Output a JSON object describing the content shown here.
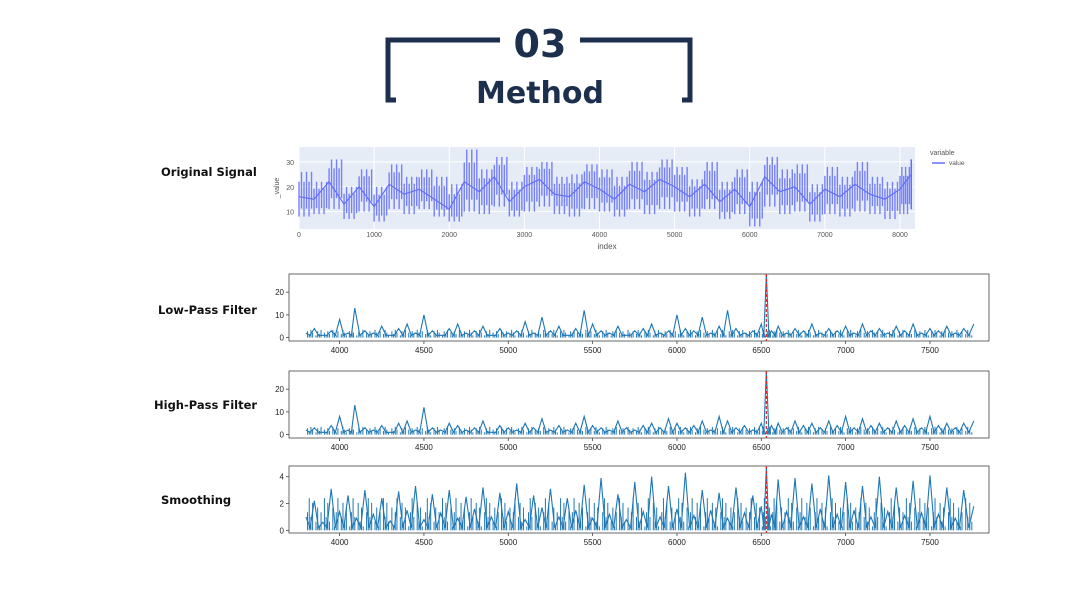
{
  "header": {
    "number": "03",
    "title": "Method"
  },
  "labels": {
    "original": "Original Signal",
    "lowpass": "Low-Pass Filter",
    "highpass": "High-Pass Filter",
    "smoothing": "Smoothing"
  },
  "colors": {
    "navy": "#1c2f4d",
    "plotly_bg": "#e5ecf6",
    "plotly_line": "#636efa",
    "mpl_line": "#1f77b4",
    "marker_red": "#d62728"
  },
  "chart_data": [
    {
      "type": "line",
      "title": "",
      "xlabel": "index",
      "ylabel": "_value",
      "xlim": [
        0,
        8200
      ],
      "ylim": [
        3,
        36
      ],
      "x_ticks": [
        0,
        1000,
        2000,
        3000,
        4000,
        5000,
        6000,
        7000,
        8000
      ],
      "y_ticks": [
        10,
        20,
        30
      ],
      "legend": {
        "title": "variable",
        "position": "top-right",
        "entries": [
          "value"
        ]
      },
      "series": [
        {
          "name": "value",
          "x": [
            0,
            200,
            400,
            600,
            800,
            1000,
            1200,
            1400,
            1600,
            1800,
            2000,
            2200,
            2400,
            2600,
            2800,
            3000,
            3200,
            3400,
            3600,
            3800,
            4000,
            4200,
            4400,
            4600,
            4800,
            5000,
            5200,
            5400,
            5600,
            5800,
            6000,
            6200,
            6400,
            6600,
            6800,
            7000,
            7200,
            7400,
            7600,
            7800,
            8000,
            8150
          ],
          "y": [
            16,
            15,
            22,
            13,
            20,
            12,
            21,
            17,
            19,
            15,
            11,
            22,
            18,
            24,
            14,
            20,
            23,
            17,
            16,
            22,
            19,
            15,
            21,
            18,
            23,
            20,
            16,
            21,
            14,
            19,
            12,
            24,
            18,
            20,
            13,
            19,
            16,
            21,
            17,
            15,
            19,
            25
          ],
          "min": [
            8,
            9,
            11,
            7,
            10,
            6,
            11,
            9,
            11,
            8,
            6,
            10,
            9,
            12,
            8,
            10,
            12,
            9,
            8,
            11,
            10,
            8,
            11,
            9,
            11,
            10,
            8,
            11,
            7,
            9,
            4,
            12,
            9,
            10,
            6,
            9,
            8,
            10,
            9,
            7,
            9,
            11
          ],
          "max": [
            26,
            22,
            31,
            20,
            27,
            20,
            29,
            24,
            27,
            24,
            21,
            35,
            27,
            32,
            22,
            28,
            30,
            24,
            25,
            29,
            27,
            24,
            30,
            26,
            31,
            28,
            23,
            30,
            22,
            27,
            22,
            32,
            27,
            29,
            21,
            28,
            24,
            30,
            24,
            22,
            28,
            31
          ]
        }
      ]
    },
    {
      "type": "line",
      "title": "",
      "xlim": [
        3700,
        7850
      ],
      "ylim": [
        -1.5,
        28
      ],
      "x_ticks": [
        4000,
        4500,
        5000,
        5500,
        6000,
        6500,
        7000,
        7500
      ],
      "y_ticks": [
        0,
        10,
        20
      ],
      "vline_x": 6530,
      "series": [
        {
          "x": [
            3800,
            3850,
            3900,
            3950,
            4000,
            4050,
            4090,
            4150,
            4200,
            4250,
            4300,
            4350,
            4400,
            4450,
            4500,
            4550,
            4600,
            4650,
            4700,
            4750,
            4800,
            4850,
            4900,
            4950,
            5000,
            5050,
            5100,
            5150,
            5200,
            5250,
            5300,
            5350,
            5400,
            5450,
            5500,
            5550,
            5600,
            5650,
            5700,
            5750,
            5800,
            5850,
            5900,
            5950,
            6000,
            6050,
            6100,
            6150,
            6200,
            6250,
            6300,
            6350,
            6400,
            6450,
            6500,
            6530,
            6560,
            6600,
            6650,
            6700,
            6750,
            6800,
            6850,
            6900,
            6950,
            7000,
            7050,
            7100,
            7150,
            7200,
            7250,
            7300,
            7350,
            7400,
            7450,
            7500,
            7550,
            7600,
            7650,
            7700,
            7760
          ],
          "y": [
            2,
            4,
            1,
            3,
            8,
            2,
            13,
            3,
            2,
            5,
            1,
            4,
            6,
            2,
            10,
            3,
            1,
            4,
            6,
            2,
            3,
            5,
            1,
            4,
            2,
            3,
            7,
            2,
            9,
            3,
            5,
            1,
            4,
            12,
            6,
            3,
            2,
            5,
            1,
            3,
            4,
            6,
            2,
            3,
            10,
            4,
            3,
            9,
            2,
            5,
            12,
            4,
            2,
            3,
            6,
            28,
            3,
            5,
            2,
            4,
            3,
            6,
            2,
            4,
            3,
            5,
            2,
            6,
            3,
            4,
            2,
            5,
            3,
            6,
            2,
            4,
            3,
            5,
            2,
            4,
            6
          ]
        }
      ]
    },
    {
      "type": "line",
      "title": "",
      "xlim": [
        3700,
        7850
      ],
      "ylim": [
        -1.5,
        28
      ],
      "x_ticks": [
        4000,
        4500,
        5000,
        5500,
        6000,
        6500,
        7000,
        7500
      ],
      "y_ticks": [
        0,
        10,
        20
      ],
      "vline_x": 6530,
      "series": [
        {
          "x": [
            3800,
            3850,
            3900,
            3950,
            4000,
            4050,
            4090,
            4150,
            4200,
            4250,
            4300,
            4350,
            4400,
            4450,
            4500,
            4550,
            4600,
            4650,
            4700,
            4750,
            4800,
            4850,
            4900,
            4950,
            5000,
            5050,
            5100,
            5150,
            5200,
            5250,
            5300,
            5350,
            5400,
            5450,
            5500,
            5550,
            5600,
            5650,
            5700,
            5750,
            5800,
            5850,
            5900,
            5950,
            6000,
            6050,
            6100,
            6150,
            6200,
            6250,
            6300,
            6350,
            6400,
            6450,
            6500,
            6530,
            6560,
            6600,
            6650,
            6700,
            6750,
            6800,
            6850,
            6900,
            6950,
            7000,
            7050,
            7100,
            7150,
            7200,
            7250,
            7300,
            7350,
            7400,
            7450,
            7500,
            7550,
            7600,
            7650,
            7700,
            7760
          ],
          "y": [
            2,
            3,
            1,
            4,
            8,
            2,
            13,
            3,
            2,
            4,
            1,
            5,
            6,
            2,
            12,
            3,
            2,
            5,
            4,
            2,
            3,
            6,
            1,
            4,
            3,
            2,
            5,
            3,
            7,
            2,
            4,
            2,
            5,
            8,
            4,
            3,
            2,
            6,
            3,
            2,
            4,
            5,
            3,
            7,
            5,
            3,
            4,
            6,
            2,
            8,
            6,
            3,
            4,
            2,
            5,
            28,
            4,
            5,
            3,
            6,
            4,
            5,
            3,
            6,
            4,
            8,
            3,
            7,
            4,
            5,
            3,
            6,
            4,
            7,
            3,
            8,
            4,
            5,
            3,
            5,
            6
          ]
        }
      ]
    },
    {
      "type": "line",
      "title": "",
      "xlim": [
        3700,
        7850
      ],
      "ylim": [
        -0.2,
        4.8
      ],
      "x_ticks": [
        4000,
        4500,
        5000,
        5500,
        6000,
        6500,
        7000,
        7500
      ],
      "y_ticks": [
        0,
        2,
        4
      ],
      "vline_x": 6530,
      "series": [
        {
          "x": [
            3800,
            3850,
            3900,
            3950,
            4000,
            4050,
            4100,
            4150,
            4200,
            4250,
            4300,
            4350,
            4400,
            4450,
            4500,
            4550,
            4600,
            4650,
            4700,
            4750,
            4800,
            4850,
            4900,
            4950,
            5000,
            5050,
            5100,
            5150,
            5200,
            5250,
            5300,
            5350,
            5400,
            5450,
            5500,
            5550,
            5600,
            5650,
            5700,
            5750,
            5800,
            5850,
            5900,
            5950,
            6000,
            6050,
            6100,
            6150,
            6200,
            6250,
            6300,
            6350,
            6400,
            6450,
            6500,
            6530,
            6560,
            6600,
            6650,
            6700,
            6750,
            6800,
            6850,
            6900,
            6950,
            7000,
            7050,
            7100,
            7150,
            7200,
            7250,
            7300,
            7350,
            7400,
            7450,
            7500,
            7550,
            7600,
            7650,
            7700,
            7760
          ],
          "y": [
            1.0,
            2.2,
            0.6,
            3.1,
            1.4,
            2.6,
            0.9,
            3.0,
            1.2,
            2.4,
            0.7,
            2.9,
            1.5,
            3.3,
            0.8,
            2.7,
            1.3,
            3.0,
            0.9,
            2.5,
            1.6,
            3.2,
            1.0,
            2.8,
            1.4,
            3.5,
            0.8,
            2.6,
            1.7,
            3.1,
            1.0,
            2.4,
            1.5,
            3.4,
            0.9,
            3.9,
            1.2,
            2.7,
            0.8,
            3.6,
            1.4,
            4.0,
            1.0,
            3.3,
            1.6,
            4.3,
            1.1,
            3.0,
            1.5,
            2.8,
            0.9,
            3.2,
            1.3,
            2.6,
            1.8,
            4.7,
            1.2,
            3.8,
            1.4,
            3.9,
            1.0,
            3.5,
            1.6,
            4.1,
            1.2,
            3.6,
            1.5,
            3.3,
            1.0,
            4.0,
            1.4,
            3.2,
            1.1,
            3.7,
            1.3,
            4.1,
            1.2,
            3.2,
            0.9,
            3.0,
            1.8
          ]
        }
      ]
    }
  ]
}
